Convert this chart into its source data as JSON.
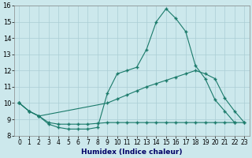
{
  "xlabel": "Humidex (Indice chaleur)",
  "ylabel": "",
  "background_color": "#cce8ec",
  "grid_color": "#aacdd4",
  "line_color": "#1a7a6a",
  "xlim": [
    -0.5,
    23.5
  ],
  "ylim": [
    8,
    16
  ],
  "xticks": [
    0,
    1,
    2,
    3,
    4,
    5,
    6,
    7,
    8,
    9,
    10,
    11,
    12,
    13,
    14,
    15,
    16,
    17,
    18,
    19,
    20,
    21,
    22,
    23
  ],
  "yticks": [
    8,
    9,
    10,
    11,
    12,
    13,
    14,
    15,
    16
  ],
  "line1_x": [
    0,
    1,
    2,
    3,
    4,
    5,
    6,
    7,
    8,
    9,
    10,
    11,
    12,
    13,
    14,
    15,
    16,
    17,
    18,
    19,
    20,
    21,
    22
  ],
  "line1_y": [
    10.0,
    9.5,
    9.2,
    8.7,
    8.5,
    8.4,
    8.4,
    8.4,
    8.5,
    10.6,
    11.8,
    12.0,
    12.2,
    13.3,
    15.0,
    15.8,
    15.2,
    14.4,
    12.3,
    11.5,
    10.2,
    9.5,
    8.8
  ],
  "line2_x": [
    0,
    1,
    2,
    9,
    10,
    11,
    12,
    13,
    14,
    15,
    16,
    17,
    18,
    19,
    20,
    21,
    22,
    23
  ],
  "line2_y": [
    10.0,
    9.5,
    9.2,
    10.0,
    10.25,
    10.5,
    10.75,
    11.0,
    11.2,
    11.4,
    11.6,
    11.8,
    12.0,
    11.8,
    11.5,
    10.3,
    9.5,
    8.8
  ],
  "line3_x": [
    0,
    1,
    2,
    3,
    4,
    5,
    6,
    7,
    8,
    9,
    10,
    11,
    12,
    13,
    14,
    15,
    16,
    17,
    18,
    19,
    20,
    21,
    22,
    23
  ],
  "line3_y": [
    10.0,
    9.5,
    9.2,
    8.8,
    8.7,
    8.7,
    8.7,
    8.7,
    8.75,
    8.8,
    8.8,
    8.8,
    8.8,
    8.8,
    8.8,
    8.8,
    8.8,
    8.8,
    8.8,
    8.8,
    8.8,
    8.8,
    8.8,
    8.8
  ]
}
